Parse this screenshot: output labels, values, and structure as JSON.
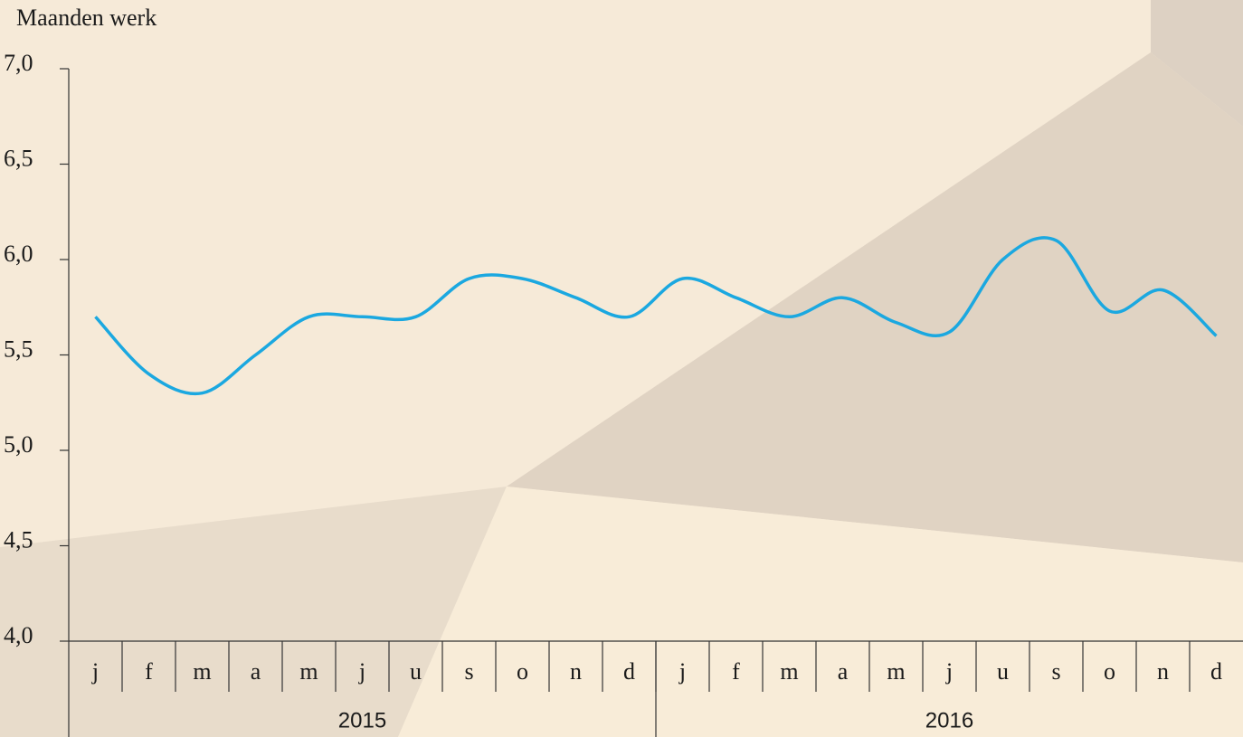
{
  "chart_data": {
    "type": "line",
    "title": "Maanden werk",
    "categories": [
      "j",
      "f",
      "m",
      "a",
      "m",
      "j",
      "u",
      "s",
      "o",
      "n",
      "d",
      "j",
      "f",
      "m",
      "a",
      "m",
      "j",
      "u",
      "s",
      "o",
      "n",
      "d"
    ],
    "years": [
      "2015",
      "2016"
    ],
    "series": [
      {
        "name": "Maanden werk",
        "color": "#1ba8e0",
        "values": [
          5.7,
          5.4,
          5.3,
          5.5,
          5.7,
          5.7,
          5.7,
          5.9,
          5.9,
          5.8,
          5.7,
          5.9,
          5.8,
          5.7,
          5.8,
          5.67,
          5.62,
          6.0,
          6.1,
          5.73,
          5.84,
          5.6
        ]
      }
    ],
    "ylim": [
      4,
      7
    ],
    "yticks": [
      {
        "value": 4,
        "label": "4,0"
      },
      {
        "value": 4.5,
        "label": "4,5"
      },
      {
        "value": 5,
        "label": "5,0"
      },
      {
        "value": 5.5,
        "label": "5,5"
      },
      {
        "value": 6,
        "label": "6,0"
      },
      {
        "value": 6.5,
        "label": "6,5"
      },
      {
        "value": 7,
        "label": "7,0"
      }
    ]
  }
}
